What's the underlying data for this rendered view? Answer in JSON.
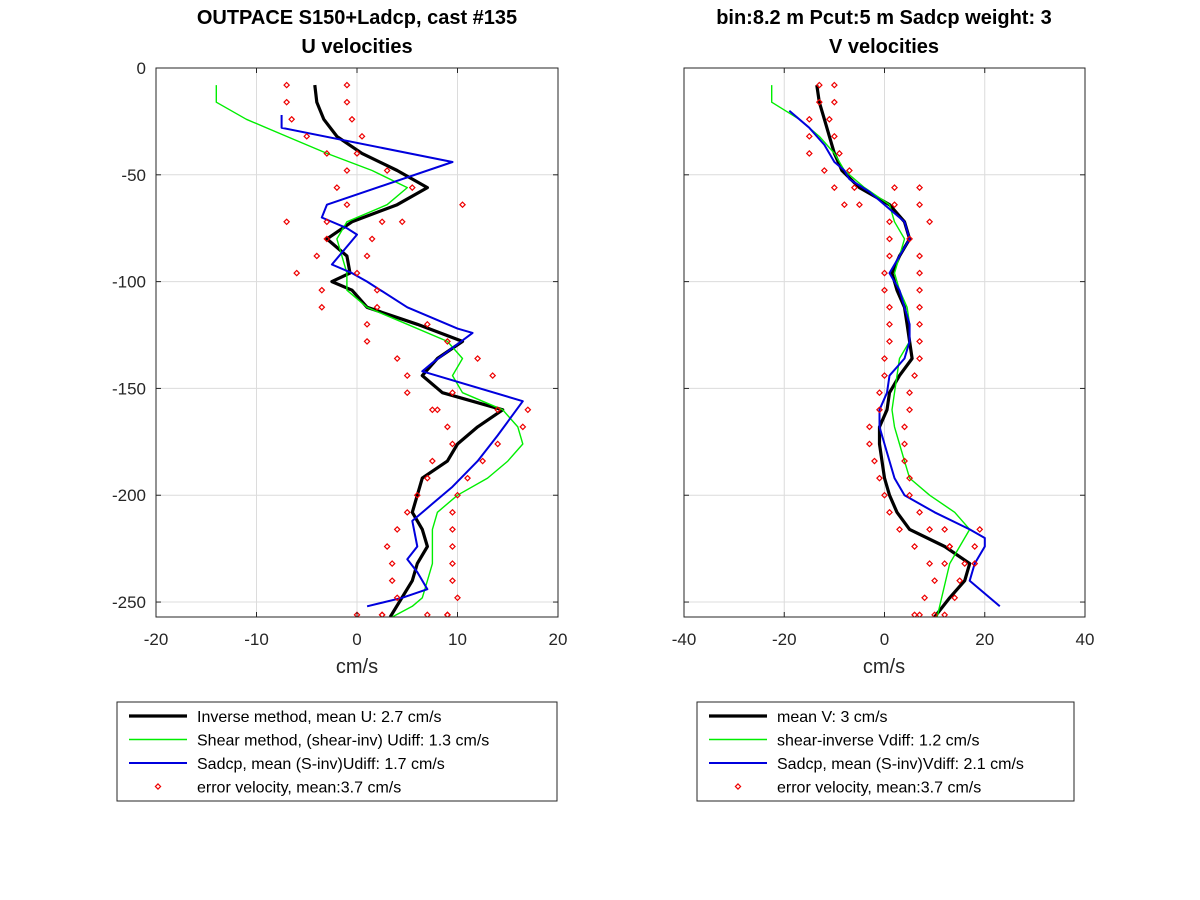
{
  "chart_data": [
    {
      "type": "line",
      "title": [
        "OUTPACE S150+Ladcp, cast #135",
        "U velocities"
      ],
      "xlabel": "cm/s",
      "ylabel": "",
      "xlim": [
        -20,
        20
      ],
      "ylim": [
        -257,
        0
      ],
      "xticks": [
        -20,
        -10,
        0,
        10,
        20
      ],
      "xtick_labels": [
        "-20",
        "-10",
        "0",
        "10",
        "20"
      ],
      "yticks": [
        0,
        -50,
        -100,
        -150,
        -200,
        -250
      ],
      "ytick_labels": [
        "0",
        "-50",
        "-100",
        "-150",
        "-200",
        "-250"
      ],
      "grid": true,
      "legend_position": "below",
      "series": [
        {
          "name": "Inverse method, mean U:  2.7 cm/s",
          "color": "#000000",
          "style": "line-thick",
          "x": [
            -4.2,
            -4.0,
            -3.3,
            -2.0,
            0.5,
            4.0,
            7.0,
            4.0,
            -0.5,
            -3.0,
            -1.0,
            -0.7,
            -2.5,
            -0.5,
            1.0,
            6.0,
            10.5,
            8.0,
            6.5,
            8.5,
            14.5,
            12.0,
            10.0,
            9.0,
            6.5,
            6.0,
            5.5,
            6.5,
            7.0,
            6.0,
            5.5,
            3.3
          ],
          "y": [
            -8,
            -16,
            -24,
            -32,
            -40,
            -48,
            -56,
            -64,
            -72,
            -80,
            -88,
            -96,
            -100,
            -104,
            -112,
            -120,
            -128,
            -136,
            -144,
            -152,
            -160,
            -168,
            -176,
            -184,
            -192,
            -200,
            -208,
            -216,
            -224,
            -232,
            -240,
            -257
          ]
        },
        {
          "name": "Shear method, (shear-inv)  Udiff:  1.3 cm/s",
          "color": "#00ee00",
          "style": "line-thin",
          "x": [
            -14.0,
            -14.0,
            -11.0,
            -7.0,
            -3.0,
            1.5,
            5.0,
            3.0,
            -1.0,
            -2.0,
            -1.5,
            -1.0,
            -1.0,
            1.0,
            5.0,
            9.0,
            10.5,
            9.5,
            10.5,
            14.5,
            16.0,
            16.5,
            15.0,
            13.0,
            10.0,
            8.0,
            7.5,
            7.5,
            7.5,
            7.0,
            6.5,
            5.5,
            3.5
          ],
          "y": [
            -8,
            -16,
            -24,
            -32,
            -40,
            -48,
            -56,
            -64,
            -72,
            -80,
            -88,
            -96,
            -104,
            -112,
            -120,
            -128,
            -136,
            -144,
            -152,
            -160,
            -168,
            -176,
            -184,
            -192,
            -200,
            -208,
            -216,
            -224,
            -232,
            -240,
            -248,
            -252,
            -257
          ]
        },
        {
          "name": "Sadcp, mean (S-inv)Udiff: 1.7 cm/s",
          "color": "#0000dd",
          "style": "line-mid",
          "x": [
            -7.5,
            -7.5,
            9.5,
            -3.0,
            -3.5,
            -1.0,
            0.0,
            -2.5,
            -0.5,
            1.0,
            5.0,
            10.0,
            11.5,
            7.5,
            6.5,
            16.5,
            14.0,
            12.0,
            9.5,
            7.5,
            5.5,
            6.0,
            5.0,
            6.0,
            7.0,
            4.5,
            1.0
          ],
          "y": [
            -22,
            -28,
            -44,
            -64,
            -70,
            -75,
            -78,
            -92,
            -96,
            -100,
            -112,
            -122,
            -124,
            -138,
            -142,
            -156,
            -172,
            -184,
            -196,
            -204,
            -212,
            -224,
            -230,
            -236,
            -244,
            -248,
            -252
          ]
        },
        {
          "name": "error velocity, mean:3.7 cm/s",
          "color": "#ee0000",
          "style": "markers",
          "x": [
            -7,
            -1,
            -7,
            -1,
            -6.5,
            -0.5,
            -5,
            0.5,
            -3,
            0,
            -1,
            3,
            -2,
            5.5,
            -1,
            10.5,
            -3,
            4.5,
            -7,
            2.5,
            -3,
            1.5,
            -4,
            1,
            -6,
            0,
            -3.5,
            2,
            -3.5,
            2,
            1,
            7,
            1,
            9,
            4,
            12,
            5,
            13.5,
            5,
            9.5,
            7.5,
            14,
            8,
            17,
            9,
            16.5,
            9.5,
            14,
            7.5,
            12.5,
            7,
            11,
            6,
            10,
            5,
            9.5,
            4,
            9.5,
            3,
            9.5,
            3.5,
            9.5,
            3.5,
            9.5,
            4,
            10,
            2.5,
            9,
            2.5,
            9,
            0,
            7
          ],
          "y": [
            -8,
            -8,
            -16,
            -16,
            -24,
            -24,
            -32,
            -32,
            -40,
            -40,
            -48,
            -48,
            -56,
            -56,
            -64,
            -64,
            -72,
            -72,
            -72,
            -72,
            -80,
            -80,
            -88,
            -88,
            -96,
            -96,
            -104,
            -104,
            -112,
            -112,
            -120,
            -120,
            -128,
            -128,
            -136,
            -136,
            -144,
            -144,
            -152,
            -152,
            -160,
            -160,
            -160,
            -160,
            -168,
            -168,
            -176,
            -176,
            -184,
            -184,
            -192,
            -192,
            -200,
            -200,
            -208,
            -208,
            -216,
            -216,
            -224,
            -224,
            -232,
            -232,
            -240,
            -240,
            -248,
            -248,
            -256,
            -256,
            -256,
            -256,
            -256,
            -256
          ]
        }
      ]
    },
    {
      "type": "line",
      "title": [
        "bin:8.2 m  Pcut:5 m  Sadcp weight: 3",
        "V velocities"
      ],
      "xlabel": "cm/s",
      "ylabel": "",
      "xlim": [
        -40,
        40
      ],
      "ylim": [
        -257,
        0
      ],
      "xticks": [
        -40,
        -20,
        0,
        20,
        40
      ],
      "xtick_labels": [
        "-40",
        "-20",
        "0",
        "20",
        "40"
      ],
      "yticks": [
        0,
        -50,
        -100,
        -150,
        -200,
        -250
      ],
      "ytick_labels": [
        "",
        "",
        "",
        "",
        "",
        ""
      ],
      "grid": true,
      "legend_position": "below",
      "series": [
        {
          "name": "mean V:  3 cm/s",
          "color": "#000000",
          "style": "line-thick",
          "x": [
            -13.5,
            -13.0,
            -12.0,
            -11.0,
            -10.0,
            -8.5,
            -5.0,
            1.0,
            4.0,
            5.0,
            3.0,
            1.5,
            2.5,
            4.0,
            4.5,
            5.0,
            5.5,
            3.0,
            1.0,
            0.5,
            -1.0,
            -1.0,
            -0.5,
            0.0,
            1.0,
            2.5,
            5.0,
            12.0,
            17.0,
            16.0,
            13.0,
            10.0
          ],
          "y": [
            -8,
            -16,
            -24,
            -32,
            -40,
            -48,
            -56,
            -64,
            -72,
            -80,
            -88,
            -96,
            -104,
            -112,
            -120,
            -128,
            -136,
            -144,
            -152,
            -160,
            -168,
            -176,
            -184,
            -192,
            -200,
            -208,
            -216,
            -224,
            -232,
            -240,
            -248,
            -257
          ]
        },
        {
          "name": "shear-inverse Vdiff:  1.2 cm/s",
          "color": "#00ee00",
          "style": "line-thin",
          "x": [
            -22.5,
            -22.5,
            -17.0,
            -13.0,
            -10.0,
            -8.0,
            -4.0,
            1.0,
            2.0,
            4.0,
            3.0,
            2.0,
            3.0,
            4.5,
            5.0,
            5.0,
            3.0,
            2.5,
            2.0,
            1.5,
            2.0,
            3.0,
            4.0,
            5.0,
            9.0,
            14.0,
            17.0,
            15.0,
            13.0,
            10.5
          ],
          "y": [
            -8,
            -16,
            -24,
            -32,
            -40,
            -48,
            -56,
            -64,
            -72,
            -80,
            -88,
            -96,
            -104,
            -112,
            -120,
            -128,
            -136,
            -144,
            -152,
            -160,
            -168,
            -176,
            -184,
            -192,
            -200,
            -208,
            -216,
            -224,
            -232,
            -257
          ]
        },
        {
          "name": "Sadcp, mean (S-inv)Vdiff: 2.1 cm/s",
          "color": "#0000dd",
          "style": "line-mid",
          "x": [
            -19.0,
            -15.0,
            -12.0,
            -10.0,
            -8.0,
            -7.0,
            -3.0,
            0.0,
            4.0,
            5.0,
            3.0,
            1.0,
            3.0,
            4.0,
            5.0,
            5.0,
            4.0,
            1.0,
            0.5,
            -1.0,
            -1.0,
            0.0,
            1.0,
            2.0,
            4.0,
            10.0,
            17.0,
            20.0,
            20.0,
            18.0,
            17.0,
            23.0
          ],
          "y": [
            -20,
            -28,
            -36,
            -44,
            -48,
            -52,
            -58,
            -64,
            -72,
            -80,
            -88,
            -96,
            -104,
            -112,
            -120,
            -128,
            -136,
            -144,
            -152,
            -160,
            -168,
            -176,
            -184,
            -192,
            -200,
            -208,
            -216,
            -220,
            -224,
            -232,
            -240,
            -252
          ]
        },
        {
          "name": "error velocity, mean:3.7 cm/s",
          "color": "#ee0000",
          "style": "markers",
          "x": [
            -13,
            -10,
            -13,
            -10,
            -15,
            -11,
            -15,
            -10,
            -15,
            -9,
            -12,
            -7,
            -10,
            -6,
            -8,
            -5,
            2,
            7,
            2,
            7,
            1,
            5,
            1,
            9,
            1,
            7,
            0,
            7,
            0,
            7,
            1,
            7,
            1,
            7,
            1,
            7,
            0,
            7,
            0,
            6,
            -1,
            5,
            -1,
            5,
            -3,
            4,
            -3,
            4,
            -2,
            4,
            -1,
            5,
            0,
            5,
            1,
            7,
            3,
            9,
            6,
            13,
            9,
            16,
            12,
            19,
            13,
            18,
            12,
            18,
            10,
            15,
            8,
            14,
            7,
            12,
            6,
            10
          ],
          "y": [
            -8,
            -8,
            -16,
            -16,
            -24,
            -24,
            -32,
            -32,
            -40,
            -40,
            -48,
            -48,
            -56,
            -56,
            -64,
            -64,
            -56,
            -56,
            -64,
            -64,
            -80,
            -80,
            -72,
            -72,
            -88,
            -88,
            -96,
            -96,
            -104,
            -104,
            -112,
            -112,
            -120,
            -120,
            -128,
            -128,
            -136,
            -136,
            -144,
            -144,
            -152,
            -152,
            -160,
            -160,
            -168,
            -168,
            -176,
            -176,
            -184,
            -184,
            -192,
            -192,
            -200,
            -200,
            -208,
            -208,
            -216,
            -216,
            -224,
            -224,
            -232,
            -232,
            -216,
            -216,
            -224,
            -224,
            -232,
            -232,
            -240,
            -240,
            -248,
            -248,
            -256,
            -256,
            -256,
            -256
          ]
        }
      ]
    }
  ]
}
